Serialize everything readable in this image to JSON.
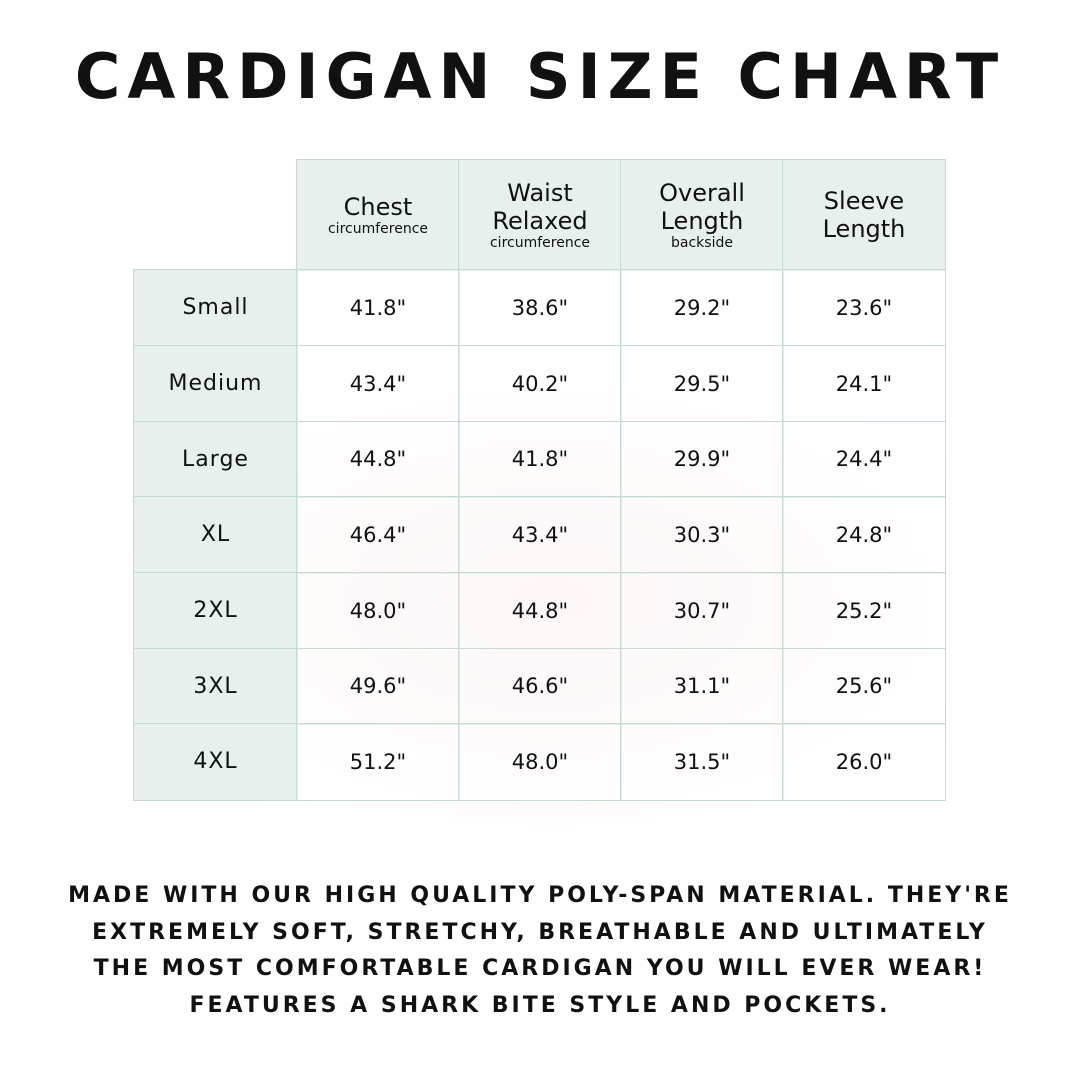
{
  "title": "Cardigan Size Chart",
  "table": {
    "columns": [
      {
        "label": "Chest",
        "sub": "circumference"
      },
      {
        "label": "Waist Relaxed",
        "sub": "circumference"
      },
      {
        "label": "Overall Length",
        "sub": "backside"
      },
      {
        "label": "Sleeve Length",
        "sub": ""
      }
    ],
    "rows": [
      {
        "size": "Small",
        "values": [
          "41.8\"",
          "38.6\"",
          "29.2\"",
          "23.6\""
        ]
      },
      {
        "size": "Medium",
        "values": [
          "43.4\"",
          "40.2\"",
          "29.5\"",
          "24.1\""
        ]
      },
      {
        "size": "Large",
        "values": [
          "44.8\"",
          "41.8\"",
          "29.9\"",
          "24.4\""
        ]
      },
      {
        "size": "XL",
        "values": [
          "46.4\"",
          "43.4\"",
          "30.3\"",
          "24.8\""
        ]
      },
      {
        "size": "2XL",
        "values": [
          "48.0\"",
          "44.8\"",
          "30.7\"",
          "25.2\""
        ]
      },
      {
        "size": "3XL",
        "values": [
          "49.6\"",
          "46.6\"",
          "31.1\"",
          "25.6\""
        ]
      },
      {
        "size": "4XL",
        "values": [
          "51.2\"",
          "48.0\"",
          "31.5\"",
          "26.0\""
        ]
      }
    ]
  },
  "description": [
    "Made with our high quality poly-span material. They're",
    "extremely soft, stretchy, breathable and ultimately",
    "the most comfortable cardigan you will ever wear!",
    "Features a shark bite style and pockets."
  ],
  "colors": {
    "header_bg": "#e7f0ec",
    "border": "#c6dbd0",
    "text": "#111111"
  }
}
